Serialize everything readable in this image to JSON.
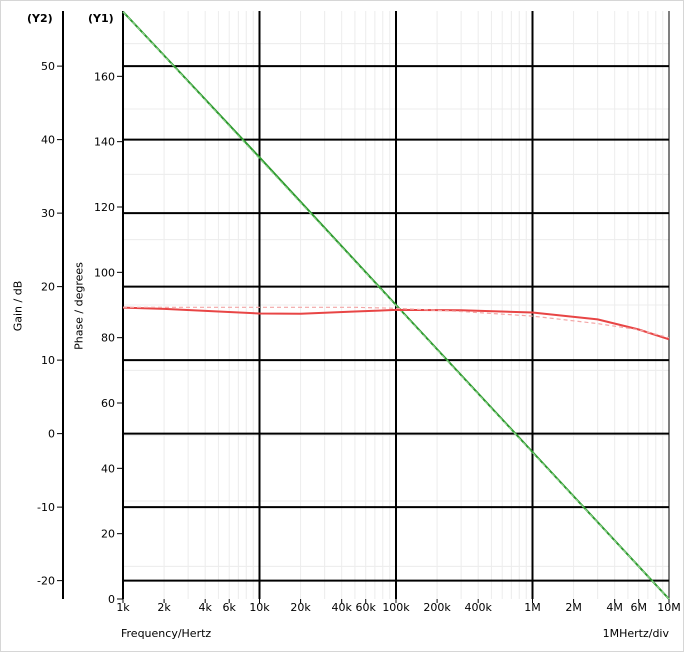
{
  "chart_data": {
    "type": "line",
    "title": "",
    "xlabel": "Frequency/Hertz",
    "x_scale": "log",
    "x_range": [
      1000,
      10000000
    ],
    "x_ticks": [
      {
        "v": 1000,
        "label": "1k"
      },
      {
        "v": 2000,
        "label": "2k"
      },
      {
        "v": 4000,
        "label": "4k"
      },
      {
        "v": 6000,
        "label": "6k"
      },
      {
        "v": 10000,
        "label": "10k"
      },
      {
        "v": 20000,
        "label": "20k"
      },
      {
        "v": 40000,
        "label": "40k"
      },
      {
        "v": 60000,
        "label": "60k"
      },
      {
        "v": 100000,
        "label": "100k"
      },
      {
        "v": 200000,
        "label": "200k"
      },
      {
        "v": 400000,
        "label": "400k"
      },
      {
        "v": 1000000,
        "label": "1M"
      },
      {
        "v": 2000000,
        "label": "2M"
      },
      {
        "v": 4000000,
        "label": "4M"
      },
      {
        "v": 6000000,
        "label": "6M"
      },
      {
        "v": 10000000,
        "label": "10M"
      }
    ],
    "x_div_label": "1MHertz/div",
    "y1": {
      "marker": "(Y1)",
      "label": "Phase / degrees",
      "range": [
        0,
        180
      ],
      "ticks": [
        0,
        20,
        40,
        60,
        80,
        100,
        120,
        140,
        160
      ]
    },
    "y2": {
      "marker": "(Y2)",
      "label": "Gain / dB",
      "range": [
        -22.5,
        57.5
      ],
      "ticks": [
        -20,
        -10,
        0,
        10,
        20,
        30,
        40,
        50
      ]
    },
    "grid": true,
    "series": [
      {
        "axis": "y2",
        "color": "#2e9a2e",
        "style": "solid",
        "x": [
          1000,
          10000,
          100000,
          1000000,
          10000000
        ],
        "y": [
          57.4,
          37.6,
          17.5,
          -2.5,
          -22.6
        ]
      },
      {
        "axis": "y2",
        "color": "#8fd08f",
        "style": "dashed",
        "x": [
          1000,
          10000,
          100000,
          1000000,
          10000000
        ],
        "y": [
          57.4,
          37.4,
          17.4,
          -2.6,
          -22.6
        ]
      },
      {
        "axis": "y1",
        "color": "#e84545",
        "style": "solid",
        "x": [
          1000,
          2000,
          5000,
          10000,
          20000,
          50000,
          100000,
          300000,
          1000000,
          3000000,
          6000000,
          10000000
        ],
        "y": [
          89.2,
          88.8,
          88.0,
          87.4,
          87.3,
          88.0,
          88.5,
          88.4,
          87.7,
          85.6,
          82.5,
          79.5
        ]
      },
      {
        "axis": "y1",
        "color": "#f3a6a6",
        "style": "dashed",
        "x": [
          1000,
          10000,
          50000,
          100000,
          300000,
          1000000,
          3000000,
          6000000,
          10000000
        ],
        "y": [
          89.3,
          89.3,
          89.3,
          89.0,
          88.0,
          86.6,
          84.3,
          82.4,
          80.0
        ]
      }
    ]
  }
}
